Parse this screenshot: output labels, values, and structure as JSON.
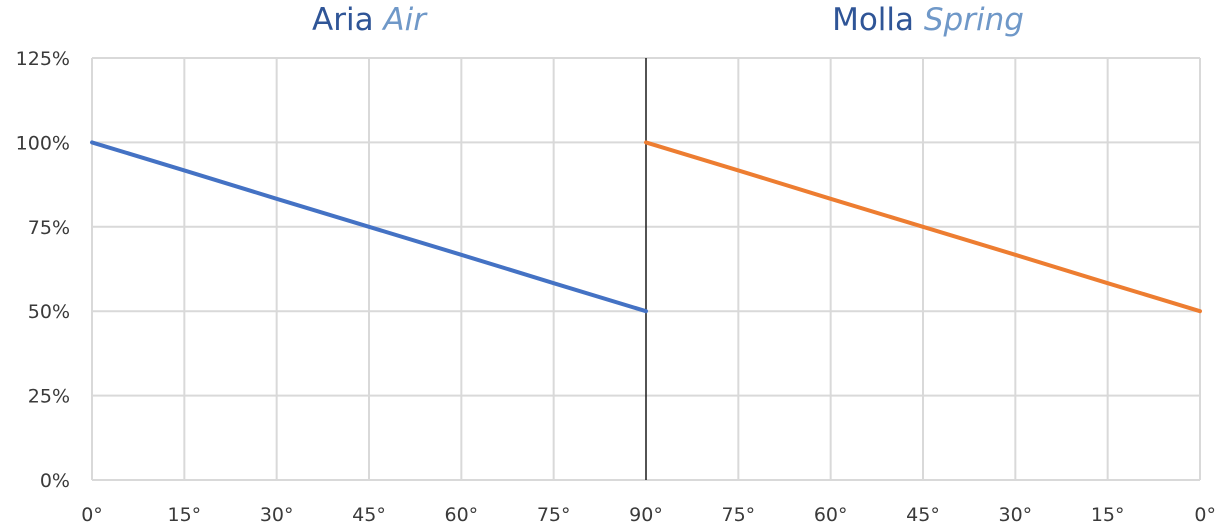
{
  "panels": [
    {
      "title_main": "Aria",
      "title_sub": "Air",
      "title_main_color": "#2f5597",
      "title_sub_color": "#6f98c8"
    },
    {
      "title_main": "Molla",
      "title_sub": "Spring",
      "title_main_color": "#2f5597",
      "title_sub_color": "#6f98c8"
    }
  ],
  "chart_data": {
    "type": "line",
    "x_tick_labels": [
      "0°",
      "15°",
      "30°",
      "45°",
      "60°",
      "75°",
      "90°",
      "75°",
      "60°",
      "45°",
      "30°",
      "15°",
      "0°"
    ],
    "y_tick_labels": [
      "0%",
      "25%",
      "50%",
      "75%",
      "100%",
      "125%"
    ],
    "ylim": [
      0,
      125
    ],
    "grid": true,
    "series": [
      {
        "color": "#4472c4",
        "x": [
          0,
          15,
          30,
          45,
          60,
          75,
          90
        ],
        "y": [
          100,
          91.7,
          83.3,
          75,
          66.7,
          58.3,
          50
        ]
      },
      {
        "color": "#ed7d31",
        "x": [
          90,
          75,
          60,
          45,
          30,
          15,
          0
        ],
        "y": [
          100,
          91.7,
          83.3,
          75,
          66.7,
          58.3,
          50
        ]
      }
    ]
  }
}
